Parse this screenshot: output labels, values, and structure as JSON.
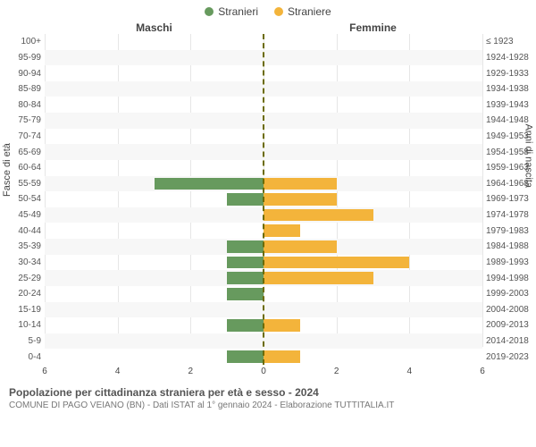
{
  "legend": {
    "male": {
      "label": "Stranieri",
      "color": "#679a5e"
    },
    "female": {
      "label": "Straniere",
      "color": "#f3b43b"
    }
  },
  "header": {
    "left": "Maschi",
    "right": "Femmine"
  },
  "chart": {
    "type": "population-pyramid",
    "x_max": 6,
    "x_ticks": [
      6,
      4,
      2,
      0,
      2,
      4,
      6
    ],
    "grid_color": "#e6e6e6",
    "background_alt_color": "#f7f7f7",
    "centerline_color": "#6b6b00",
    "row_font": 10,
    "rows": [
      {
        "age": "100+",
        "birth": "≤ 1923",
        "m": 0,
        "f": 0
      },
      {
        "age": "95-99",
        "birth": "1924-1928",
        "m": 0,
        "f": 0
      },
      {
        "age": "90-94",
        "birth": "1929-1933",
        "m": 0,
        "f": 0
      },
      {
        "age": "85-89",
        "birth": "1934-1938",
        "m": 0,
        "f": 0
      },
      {
        "age": "80-84",
        "birth": "1939-1943",
        "m": 0,
        "f": 0
      },
      {
        "age": "75-79",
        "birth": "1944-1948",
        "m": 0,
        "f": 0
      },
      {
        "age": "70-74",
        "birth": "1949-1953",
        "m": 0,
        "f": 0
      },
      {
        "age": "65-69",
        "birth": "1954-1958",
        "m": 0,
        "f": 0
      },
      {
        "age": "60-64",
        "birth": "1959-1963",
        "m": 0,
        "f": 0
      },
      {
        "age": "55-59",
        "birth": "1964-1968",
        "m": 3,
        "f": 2
      },
      {
        "age": "50-54",
        "birth": "1969-1973",
        "m": 1,
        "f": 2
      },
      {
        "age": "45-49",
        "birth": "1974-1978",
        "m": 0,
        "f": 3
      },
      {
        "age": "40-44",
        "birth": "1979-1983",
        "m": 0,
        "f": 1
      },
      {
        "age": "35-39",
        "birth": "1984-1988",
        "m": 1,
        "f": 2
      },
      {
        "age": "30-34",
        "birth": "1989-1993",
        "m": 1,
        "f": 4
      },
      {
        "age": "25-29",
        "birth": "1994-1998",
        "m": 1,
        "f": 3
      },
      {
        "age": "20-24",
        "birth": "1999-2003",
        "m": 1,
        "f": 0
      },
      {
        "age": "15-19",
        "birth": "2004-2008",
        "m": 0,
        "f": 0
      },
      {
        "age": "10-14",
        "birth": "2009-2013",
        "m": 1,
        "f": 1
      },
      {
        "age": "5-9",
        "birth": "2014-2018",
        "m": 0,
        "f": 0
      },
      {
        "age": "0-4",
        "birth": "2019-2023",
        "m": 1,
        "f": 1
      }
    ]
  },
  "y_axis": {
    "left": "Fasce di età",
    "right": "Anni di nascita"
  },
  "footer": {
    "title": "Popolazione per cittadinanza straniera per età e sesso - 2024",
    "sub": "COMUNE DI PAGO VEIANO (BN) - Dati ISTAT al 1° gennaio 2024 - Elaborazione TUTTITALIA.IT"
  }
}
